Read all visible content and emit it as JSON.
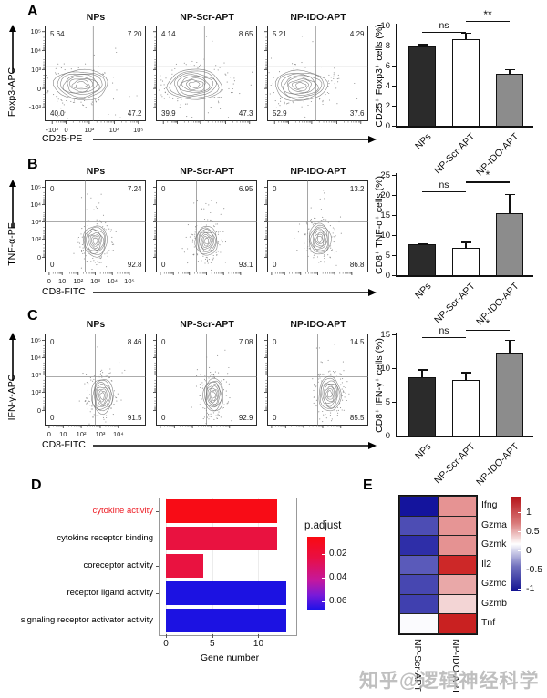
{
  "watermark": "知乎@逻辑神经科学",
  "flow_panels": [
    {
      "letter": "A",
      "y_axis_label": "Foxp3-APC",
      "x_axis_label": "CD25-PE",
      "y_ticks": [
        "10⁵",
        "10⁴",
        "10³",
        "0",
        "-10³"
      ],
      "x_ticks": [
        "-10³",
        "0",
        "10³",
        "10⁴",
        "10⁵"
      ],
      "plots": [
        {
          "title": "NPs",
          "quadrants": {
            "top_left": "5.64",
            "top_right": "7.20",
            "bottom_left": "40.0",
            "bottom_right": "47.2"
          }
        },
        {
          "title": "NP-Scr-APT",
          "quadrants": {
            "top_left": "4.14",
            "top_right": "8.65",
            "bottom_left": "39.9",
            "bottom_right": "47.3"
          }
        },
        {
          "title": "NP-IDO-APT",
          "quadrants": {
            "top_left": "5.21",
            "top_right": "4.29",
            "bottom_left": "52.9",
            "bottom_right": "37.6"
          }
        }
      ],
      "bar_chart": {
        "type": "bar",
        "ylabel": "CD25⁺ Foxp3⁺ cells (%)",
        "categories": [
          "NPs",
          "NP-Scr-APT",
          "NP-IDO-APT"
        ],
        "values": [
          7.9,
          8.65,
          5.15
        ],
        "errors": [
          0.25,
          0.65,
          0.5
        ],
        "ylim": [
          0,
          10
        ],
        "yticks": [
          0,
          2,
          4,
          6,
          8,
          10
        ],
        "bar_colors": [
          "#2b2b2b",
          "#ffffff",
          "#8c8c8c"
        ],
        "significance": [
          {
            "from": 0,
            "to": 1,
            "label": "ns",
            "y": 9.35
          },
          {
            "from": 1,
            "to": 2,
            "label": "**",
            "y": 10.45
          }
        ]
      }
    },
    {
      "letter": "B",
      "y_axis_label": "TNF-α-PE",
      "x_axis_label": "CD8-FITC",
      "y_ticks": [
        "10⁵",
        "10⁴",
        "10³",
        "10²",
        "0"
      ],
      "x_ticks": [
        "0",
        "10",
        "10²",
        "10³",
        "10⁴",
        "10⁵"
      ],
      "plots": [
        {
          "title": "NPs",
          "quadrants": {
            "top_left": "0",
            "top_right": "7.24",
            "bottom_left": "0",
            "bottom_right": "92.8"
          }
        },
        {
          "title": "NP-Scr-APT",
          "quadrants": {
            "top_left": "0",
            "top_right": "6.95",
            "bottom_left": "0",
            "bottom_right": "93.1"
          }
        },
        {
          "title": "NP-IDO-APT",
          "quadrants": {
            "top_left": "0",
            "top_right": "13.2",
            "bottom_left": "0",
            "bottom_right": "86.8"
          }
        }
      ],
      "bar_chart": {
        "type": "bar",
        "ylabel": "CD8⁺ TNF-α⁺ cells (%)",
        "categories": [
          "NPs",
          "NP-Scr-APT",
          "NP-IDO-APT"
        ],
        "values": [
          7.7,
          6.8,
          15.4
        ],
        "errors": [
          0.3,
          1.5,
          4.9
        ],
        "ylim": [
          0,
          25
        ],
        "yticks": [
          0,
          5,
          10,
          15,
          20,
          25
        ],
        "bar_colors": [
          "#2b2b2b",
          "#ffffff",
          "#8c8c8c"
        ],
        "significance": [
          {
            "from": 0,
            "to": 1,
            "label": "ns",
            "y": 21.0
          },
          {
            "from": 1,
            "to": 2,
            "label": "*",
            "y": 23.3
          }
        ]
      }
    },
    {
      "letter": "C",
      "y_axis_label": "IFN-γ-APC",
      "x_axis_label": "CD8-FITC",
      "y_ticks": [
        "10⁵",
        "10⁴",
        "10³",
        "10²",
        "0"
      ],
      "x_ticks": [
        "0",
        "10",
        "10²",
        "10³",
        "10⁴"
      ],
      "plots": [
        {
          "title": "NPs",
          "quadrants": {
            "top_left": "0",
            "top_right": "8.46",
            "bottom_left": "0",
            "bottom_right": "91.5"
          }
        },
        {
          "title": "NP-Scr-APT",
          "quadrants": {
            "top_left": "0",
            "top_right": "7.08",
            "bottom_left": "0",
            "bottom_right": "92.9"
          }
        },
        {
          "title": "NP-IDO-APT",
          "quadrants": {
            "top_left": "0",
            "top_right": "14.5",
            "bottom_left": "0",
            "bottom_right": "85.5"
          }
        }
      ],
      "bar_chart": {
        "type": "bar",
        "ylabel": "CD8⁺ IFN-γ⁺ cells (%)",
        "categories": [
          "NPs",
          "NP-Scr-APT",
          "NP-IDO-APT"
        ],
        "values": [
          8.6,
          8.3,
          12.3
        ],
        "errors": [
          1.2,
          1.1,
          1.9
        ],
        "ylim": [
          0,
          15
        ],
        "yticks": [
          0,
          5,
          10,
          15
        ],
        "bar_colors": [
          "#2b2b2b",
          "#ffffff",
          "#8c8c8c"
        ],
        "significance": [
          {
            "from": 0,
            "to": 1,
            "label": "ns",
            "y": 14.6
          },
          {
            "from": 1,
            "to": 2,
            "label": "*",
            "y": 15.7
          }
        ]
      }
    }
  ],
  "go_chart": {
    "letter": "D",
    "type": "bar",
    "orientation": "horizontal",
    "categories": [
      "cytokine activity",
      "cytokine receptor binding",
      "coreceptor activity",
      "receptor ligand activity",
      "signaling receptor activator activity"
    ],
    "values": [
      12,
      12,
      4,
      13,
      13
    ],
    "bar_colors": [
      "#f80c16",
      "#e91240",
      "#e91240",
      "#1c12e2",
      "#1c12e2"
    ],
    "category_label_colors": [
      "#ed1c24",
      "#000000",
      "#000000",
      "#000000",
      "#000000"
    ],
    "xlabel": "Gene number",
    "xticks": [
      "0",
      "5",
      "10"
    ],
    "xtick_values": [
      0,
      5,
      10
    ],
    "xlim": [
      0,
      13.6
    ],
    "legend": {
      "title": "p.adjust",
      "ticks": [
        "0.02",
        "0.04",
        "0.06"
      ],
      "gradient_top": "#fa0a10",
      "gradient_mid": "#c4189e",
      "gradient_bottom": "#1d12e8"
    }
  },
  "heatmap": {
    "letter": "E",
    "type": "heatmap",
    "rows": [
      "Ifng",
      "Gzma",
      "Gzmk",
      "Il2",
      "Gzmc",
      "Gzmb",
      "Tnf"
    ],
    "columns": [
      "NP-Scr-APT",
      "NP-IDO-APT"
    ],
    "values": [
      [
        -1.3,
        0.55
      ],
      [
        -0.75,
        0.55
      ],
      [
        -1.0,
        0.5
      ],
      [
        -0.65,
        1.15
      ],
      [
        -0.8,
        0.45
      ],
      [
        -0.85,
        0.2
      ],
      [
        0.0,
        1.25
      ]
    ],
    "cell_colors": [
      [
        "#14149d",
        "#e69393"
      ],
      [
        "#4d4db4",
        "#e69595"
      ],
      [
        "#2e2ea8",
        "#e59292"
      ],
      [
        "#5a5aba",
        "#cd2828"
      ],
      [
        "#4747b1",
        "#e9a8a8"
      ],
      [
        "#4040af",
        "#f3d5d5"
      ],
      [
        "#fbfbfe",
        "#c92121"
      ]
    ],
    "colorbar_ticks": [
      "1",
      "0.5",
      "0",
      "-0.5",
      "-1"
    ],
    "colorbar_top": "#b51318",
    "colorbar_mid": "#ffffff",
    "colorbar_bottom": "#121291"
  }
}
